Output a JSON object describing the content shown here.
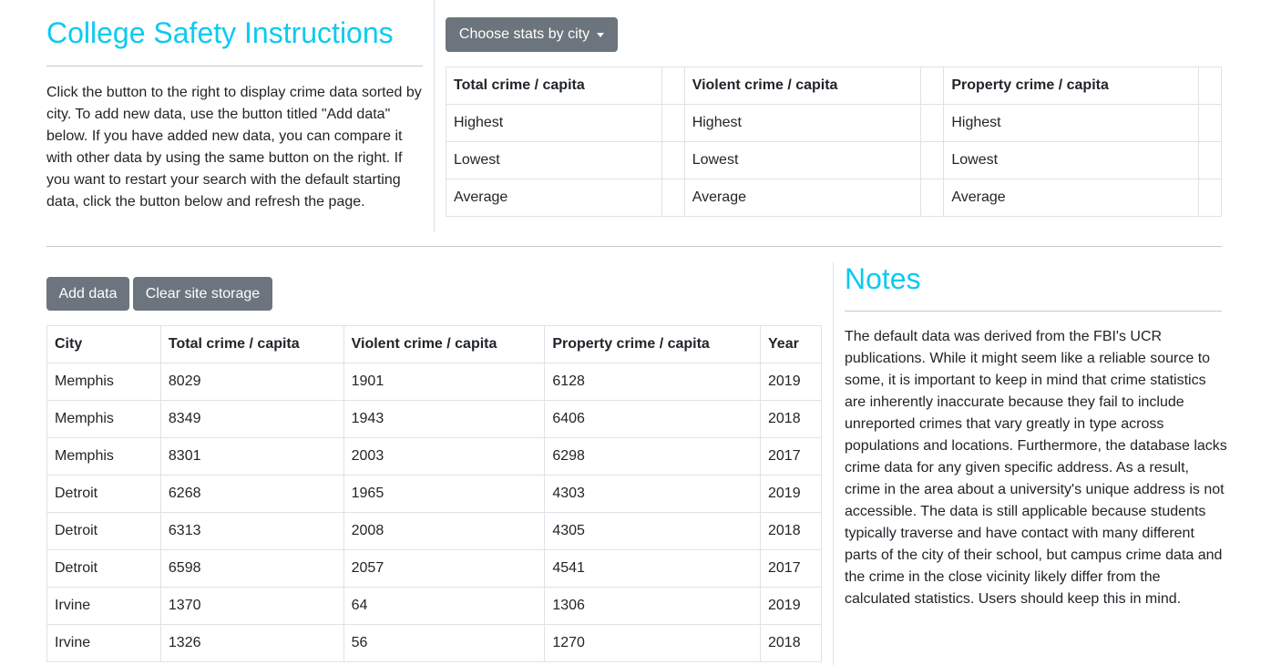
{
  "header": {
    "title": "College Safety Instructions",
    "intro": "Click the button to the right to display crime data sorted by city. To add new data, use the button titled \"Add data\" below. If you have added new data, you can compare it with other data by using the same button on the right. If you want to restart your search with the default starting data, click the button below and refresh the page."
  },
  "stats": {
    "button_label": "Choose stats by city",
    "columns": [
      "Total crime / capita",
      "Violent crime / capita",
      "Property crime / capita"
    ],
    "rows": [
      "Highest",
      "Lowest",
      "Average"
    ]
  },
  "toolbar": {
    "add_label": "Add data",
    "clear_label": "Clear site storage"
  },
  "data_table": {
    "headers": [
      "City",
      "Total crime / capita",
      "Violent crime / capita",
      "Property crime / capita",
      "Year"
    ],
    "rows": [
      [
        "Memphis",
        "8029",
        "1901",
        "6128",
        "2019"
      ],
      [
        "Memphis",
        "8349",
        "1943",
        "6406",
        "2018"
      ],
      [
        "Memphis",
        "8301",
        "2003",
        "6298",
        "2017"
      ],
      [
        "Detroit",
        "6268",
        "1965",
        "4303",
        "2019"
      ],
      [
        "Detroit",
        "6313",
        "2008",
        "4305",
        "2018"
      ],
      [
        "Detroit",
        "6598",
        "2057",
        "4541",
        "2017"
      ],
      [
        "Irvine",
        "1370",
        "64",
        "1306",
        "2019"
      ],
      [
        "Irvine",
        "1326",
        "56",
        "1270",
        "2018"
      ]
    ]
  },
  "notes": {
    "title": "Notes",
    "body": "The default data was derived from the FBI's UCR publications. While it might seem like a reliable source to some, it is important to keep in mind that crime statistics are inherently inaccurate because they fail to include unreported crimes that vary greatly in type across populations and locations. Furthermore, the database lacks crime data for any given specific address. As a result, crime in the area about a university's unique address is not accessible. The data is still applicable because students typically traverse and have contact with many different parts of the city of their school, but campus crime data and the crime in the close vicinity likely differ from the calculated statistics. Users should keep this in mind."
  },
  "colors": {
    "accent": "#0dcaf0",
    "button": "#6c757d",
    "border": "#dee2e6"
  }
}
